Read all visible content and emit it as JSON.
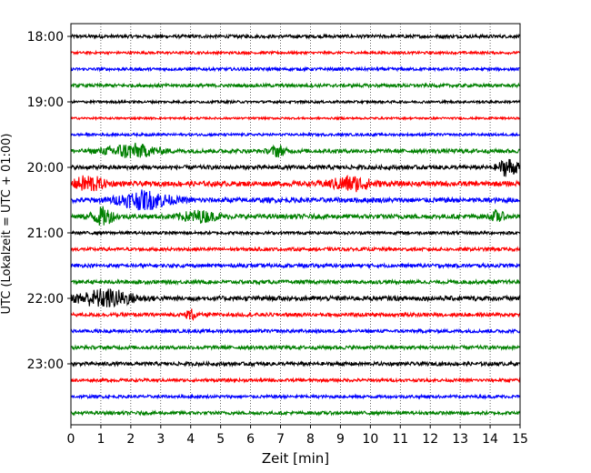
{
  "chart_data": {
    "type": "line",
    "title": "",
    "xlabel": "Zeit  [min]",
    "ylabel": "UTC (Lokalzeit = UTC + 01:00)",
    "xlim": [
      0,
      15
    ],
    "x_ticks": [
      "0",
      "1",
      "2",
      "3",
      "4",
      "5",
      "6",
      "7",
      "8",
      "9",
      "10",
      "11",
      "12",
      "13",
      "14",
      "15"
    ],
    "y_ticks": [
      "18:00",
      "19:00",
      "20:00",
      "21:00",
      "22:00",
      "23:00"
    ],
    "grid": "vertical dotted",
    "trace_interval_min": 15,
    "start_time": "18:00",
    "trace_colors": [
      "#000000",
      "#ff0000",
      "#0000ff",
      "#008000"
    ],
    "traces": [
      {
        "time": "18:00",
        "color": "#000000",
        "amplitude": 0.2
      },
      {
        "time": "18:15",
        "color": "#ff0000",
        "amplitude": 0.15
      },
      {
        "time": "18:30",
        "color": "#0000ff",
        "amplitude": 0.18
      },
      {
        "time": "18:45",
        "color": "#008000",
        "amplitude": 0.2
      },
      {
        "time": "19:00",
        "color": "#000000",
        "amplitude": 0.15
      },
      {
        "time": "19:15",
        "color": "#ff0000",
        "amplitude": 0.12
      },
      {
        "time": "19:30",
        "color": "#0000ff",
        "amplitude": 0.15
      },
      {
        "time": "19:45",
        "color": "#008000",
        "amplitude": 0.25
      },
      {
        "time": "20:00",
        "color": "#000000",
        "amplitude": 0.25
      },
      {
        "time": "20:15",
        "color": "#ff0000",
        "amplitude": 0.3
      },
      {
        "time": "20:30",
        "color": "#0000ff",
        "amplitude": 0.3
      },
      {
        "time": "20:45",
        "color": "#008000",
        "amplitude": 0.28
      },
      {
        "time": "21:00",
        "color": "#000000",
        "amplitude": 0.18
      },
      {
        "time": "21:15",
        "color": "#ff0000",
        "amplitude": 0.2
      },
      {
        "time": "21:30",
        "color": "#0000ff",
        "amplitude": 0.22
      },
      {
        "time": "21:45",
        "color": "#008000",
        "amplitude": 0.22
      },
      {
        "time": "22:00",
        "color": "#000000",
        "amplitude": 0.28
      },
      {
        "time": "22:15",
        "color": "#ff0000",
        "amplitude": 0.22
      },
      {
        "time": "22:30",
        "color": "#0000ff",
        "amplitude": 0.2
      },
      {
        "time": "22:45",
        "color": "#008000",
        "amplitude": 0.22
      },
      {
        "time": "23:00",
        "color": "#000000",
        "amplitude": 0.22
      },
      {
        "time": "23:15",
        "color": "#ff0000",
        "amplitude": 0.18
      },
      {
        "time": "23:30",
        "color": "#0000ff",
        "amplitude": 0.18
      },
      {
        "time": "23:45",
        "color": "#008000",
        "amplitude": 0.2
      }
    ],
    "events": [
      {
        "trace": 7,
        "x": [
          1.0,
          3.0
        ],
        "level": 0.8
      },
      {
        "trace": 7,
        "x": [
          6.6,
          7.2
        ],
        "level": 0.6
      },
      {
        "trace": 8,
        "x": [
          14.2,
          15.0
        ],
        "level": 1.0
      },
      {
        "trace": 9,
        "x": [
          0.0,
          1.2
        ],
        "level": 0.9
      },
      {
        "trace": 9,
        "x": [
          8.5,
          10.2
        ],
        "level": 0.8
      },
      {
        "trace": 10,
        "x": [
          1.4,
          3.5
        ],
        "level": 1.0
      },
      {
        "trace": 11,
        "x": [
          0.6,
          1.5
        ],
        "level": 1.0
      },
      {
        "trace": 11,
        "x": [
          3.5,
          5.0
        ],
        "level": 0.6
      },
      {
        "trace": 11,
        "x": [
          14.0,
          14.5
        ],
        "level": 0.6
      },
      {
        "trace": 16,
        "x": [
          0.0,
          2.3
        ],
        "level": 1.0
      },
      {
        "trace": 17,
        "x": [
          3.8,
          4.2
        ],
        "level": 0.6
      }
    ]
  }
}
